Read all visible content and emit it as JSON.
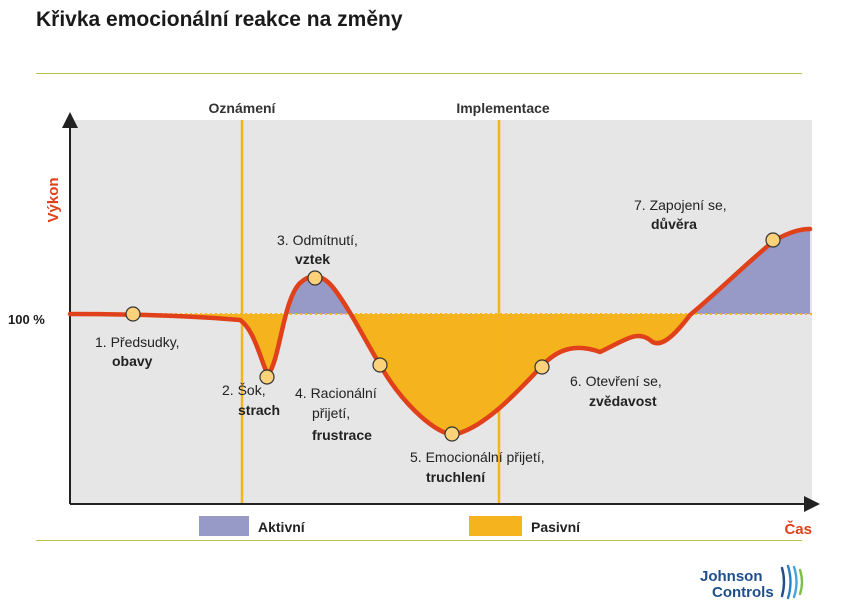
{
  "title": "Křivka emocionální reakce na změny",
  "axes": {
    "y_label": "Výkon",
    "x_label": "Čas",
    "baseline_label": "100 %"
  },
  "milestones": {
    "announcement": "Oznámení",
    "implementation": "Implementace"
  },
  "stages": [
    {
      "line1": "1. Předsudky,",
      "line2": "",
      "emphasis": "obavy"
    },
    {
      "line1": "2. Šok,",
      "line2": "",
      "emphasis": "strach"
    },
    {
      "line1": "3. Odmítnutí,",
      "line2": "",
      "emphasis": "vztek"
    },
    {
      "line1": "4. Racionální",
      "line2": "přijetí,",
      "emphasis": "frustrace"
    },
    {
      "line1": "5. Emocionální přijetí,",
      "line2": "",
      "emphasis": "truchlení"
    },
    {
      "line1": "6. Otevření se,",
      "line2": "",
      "emphasis": "zvědavost"
    },
    {
      "line1": "7. Zapojení se,",
      "line2": "",
      "emphasis": "důvěra"
    }
  ],
  "legend": {
    "active": "Aktivní",
    "passive": "Pasivní"
  },
  "logo": {
    "line1": "Johnson",
    "line2": "Controls"
  },
  "colors": {
    "curve": "#e0401a",
    "active_fill": "#9799c6",
    "passive_fill": "#f5b31d",
    "milestone": "#f5b31d",
    "plot_bg": "#e6e6e6",
    "node": "#fbd27a"
  }
}
